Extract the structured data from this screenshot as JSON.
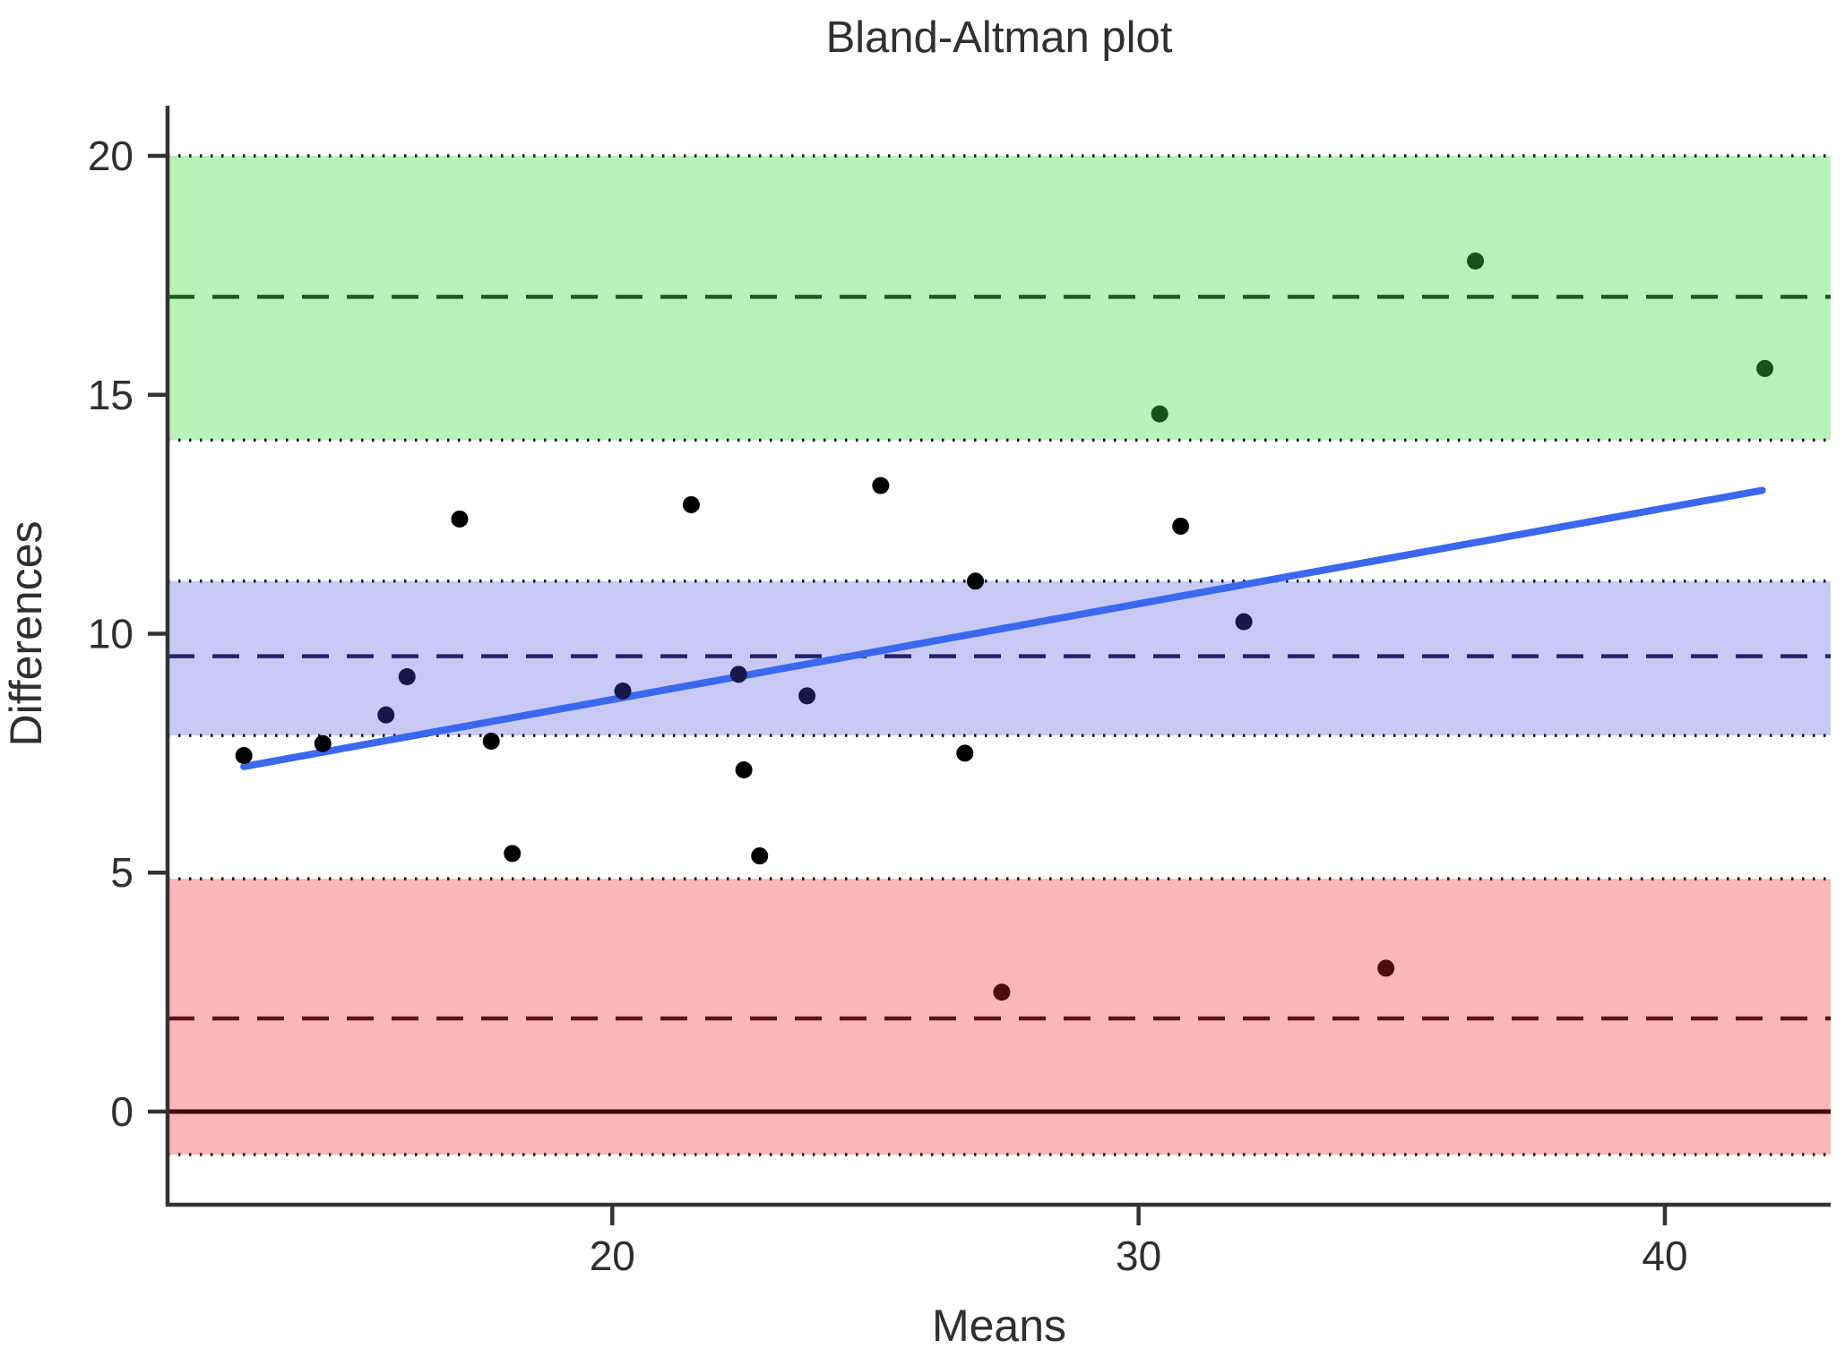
{
  "title": "Bland-Altman plot",
  "chart_data": {
    "type": "scatter",
    "title": "Bland-Altman plot",
    "xlabel": "Means",
    "ylabel": "Differences",
    "xlim": [
      11.55,
      43.15
    ],
    "ylim": [
      -1.95,
      21.05
    ],
    "x_ticks": [
      20,
      30,
      40
    ],
    "y_ticks": [
      0,
      5,
      10,
      15,
      20
    ],
    "grid": false,
    "legend": "none",
    "bands": [
      {
        "name": "upper-loa-ci-band",
        "from": 14.05,
        "to": 20.0,
        "fill": "#b7f2b7",
        "center_dashed_at": 17.05,
        "dash_color": "#1e5c1e"
      },
      {
        "name": "mean-ci-band",
        "from": 7.87,
        "to": 11.1,
        "fill": "#c9c9f6",
        "center_dashed_at": 9.53,
        "dash_color": "#23236b"
      },
      {
        "name": "lower-loa-ci-band",
        "from": -0.9,
        "to": 4.87,
        "fill": "#fbb6b6",
        "center_dashed_at": 1.95,
        "dash_color": "#5c1414"
      }
    ],
    "zero_line": {
      "y": 0,
      "color": "#400a0a"
    },
    "regression_line": {
      "x1": 13.0,
      "y1": 7.22,
      "x2": 41.85,
      "y2": 13.0,
      "color": "#3b68f0"
    },
    "dotted_edge_color": "#1a1a1a",
    "point_colors": {
      "black": "#000000",
      "navy": "#17174a",
      "darkgreen": "#155415",
      "darkred": "#4f0c0c"
    },
    "points": [
      {
        "x": 13.0,
        "y": 7.45,
        "c": "black"
      },
      {
        "x": 14.5,
        "y": 7.7,
        "c": "black"
      },
      {
        "x": 15.7,
        "y": 8.3,
        "c": "navy"
      },
      {
        "x": 16.1,
        "y": 9.1,
        "c": "navy"
      },
      {
        "x": 17.1,
        "y": 12.4,
        "c": "black"
      },
      {
        "x": 17.7,
        "y": 7.75,
        "c": "black"
      },
      {
        "x": 18.1,
        "y": 5.4,
        "c": "black"
      },
      {
        "x": 20.2,
        "y": 8.8,
        "c": "navy"
      },
      {
        "x": 21.5,
        "y": 12.7,
        "c": "black"
      },
      {
        "x": 22.4,
        "y": 9.15,
        "c": "navy"
      },
      {
        "x": 22.5,
        "y": 7.15,
        "c": "black"
      },
      {
        "x": 22.8,
        "y": 5.35,
        "c": "black"
      },
      {
        "x": 23.7,
        "y": 8.7,
        "c": "navy"
      },
      {
        "x": 25.1,
        "y": 13.1,
        "c": "black"
      },
      {
        "x": 26.7,
        "y": 7.5,
        "c": "black"
      },
      {
        "x": 26.9,
        "y": 11.1,
        "c": "black"
      },
      {
        "x": 27.4,
        "y": 2.5,
        "c": "darkred"
      },
      {
        "x": 30.4,
        "y": 14.6,
        "c": "darkgreen"
      },
      {
        "x": 30.8,
        "y": 12.25,
        "c": "black"
      },
      {
        "x": 32.0,
        "y": 10.25,
        "c": "navy"
      },
      {
        "x": 34.7,
        "y": 3.0,
        "c": "darkred"
      },
      {
        "x": 36.4,
        "y": 17.8,
        "c": "darkgreen"
      },
      {
        "x": 41.9,
        "y": 15.55,
        "c": "darkgreen"
      }
    ]
  }
}
